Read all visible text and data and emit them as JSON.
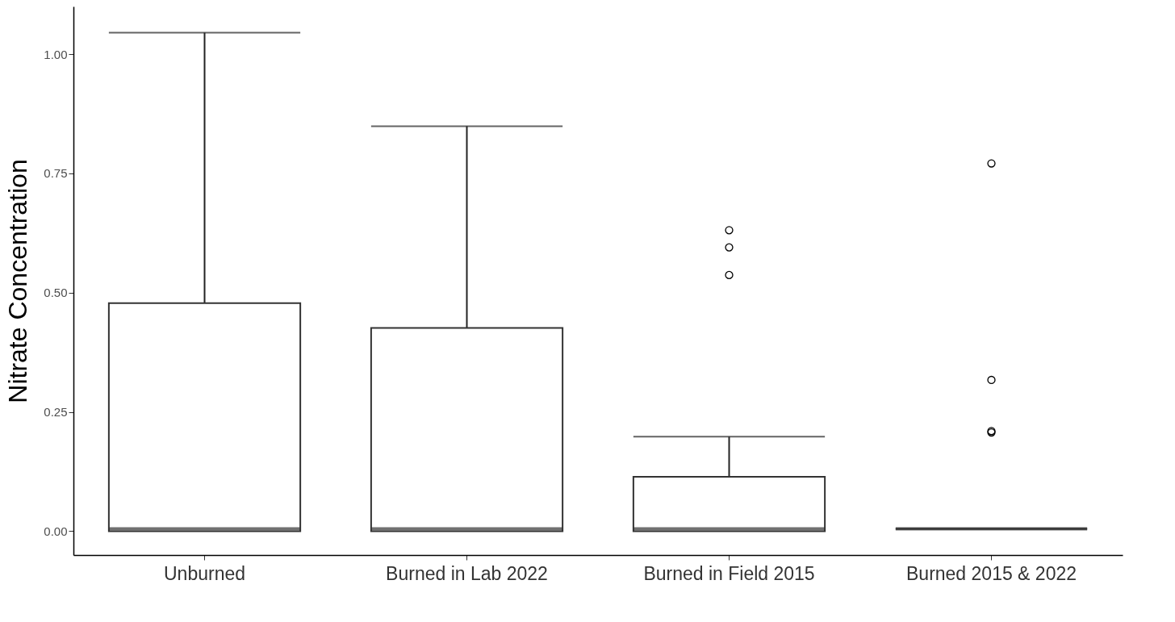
{
  "chart_data": {
    "type": "box",
    "ylabel": "Nitrate Concentration",
    "categories": [
      "Unburned",
      "Burned in Lab 2022",
      "Burned in Field 2015",
      "Burned 2015 & 2022"
    ],
    "boxes": [
      {
        "low": 0,
        "q1": 0,
        "median": 0.005,
        "q3": 0.478,
        "high": 1.045
      },
      {
        "low": 0,
        "q1": 0,
        "median": 0.005,
        "q3": 0.426,
        "high": 0.849
      },
      {
        "low": 0,
        "q1": 0,
        "median": 0.005,
        "q3": 0.114,
        "high": 0.198,
        "outliers": [
          0.631,
          0.595,
          0.537
        ]
      },
      {
        "low": 0.005,
        "q1": 0.005,
        "median": 0.005,
        "q3": 0.005,
        "high": 0.005,
        "outliers": [
          0.771,
          0.317,
          0.21,
          0.207
        ]
      }
    ],
    "ylim": [
      -0.05,
      1.1
    ],
    "yticks": [
      {
        "value": 0,
        "label": "0.00"
      },
      {
        "value": 0.25,
        "label": "0.25"
      },
      {
        "value": 0.5,
        "label": "0.50"
      },
      {
        "value": 0.75,
        "label": "0.75"
      },
      {
        "value": 1,
        "label": "1.00"
      }
    ]
  }
}
